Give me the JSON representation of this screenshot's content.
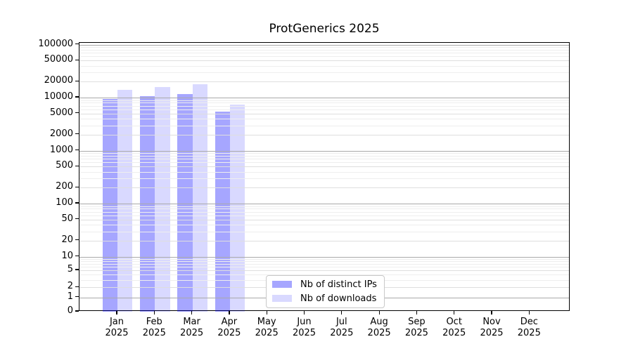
{
  "title": "ProtGenerics 2025",
  "chart_data": {
    "type": "bar",
    "title": "ProtGenerics 2025",
    "categories": [
      "Jan 2025",
      "Feb 2025",
      "Mar 2025",
      "Apr 2025",
      "May 2025",
      "Jun 2025",
      "Jul 2025",
      "Aug 2025",
      "Sep 2025",
      "Oct 2025",
      "Nov 2025",
      "Dec 2025"
    ],
    "series": [
      {
        "name": "Nb of distinct IPs",
        "color": "rgba(0,0,255,0.35)",
        "values": [
          9300,
          10500,
          11500,
          5400,
          null,
          null,
          null,
          null,
          null,
          null,
          null,
          null
        ]
      },
      {
        "name": "Nb of downloads",
        "color": "rgba(0,0,255,0.15)",
        "values": [
          14200,
          15700,
          17900,
          7400,
          null,
          null,
          null,
          null,
          null,
          null,
          null,
          null
        ]
      }
    ],
    "yscale": "symlog",
    "ylim": [
      0,
      100000
    ],
    "yticks": [
      100000,
      50000,
      20000,
      10000,
      5000,
      2000,
      1000,
      500,
      200,
      100,
      50,
      20,
      10,
      5,
      2,
      1,
      0
    ],
    "grid": true,
    "legend_position": "lower center",
    "bar_group_width": 0.8
  },
  "legend": {
    "items": [
      {
        "label": "Nb of distinct IPs"
      },
      {
        "label": "Nb of downloads"
      }
    ]
  }
}
